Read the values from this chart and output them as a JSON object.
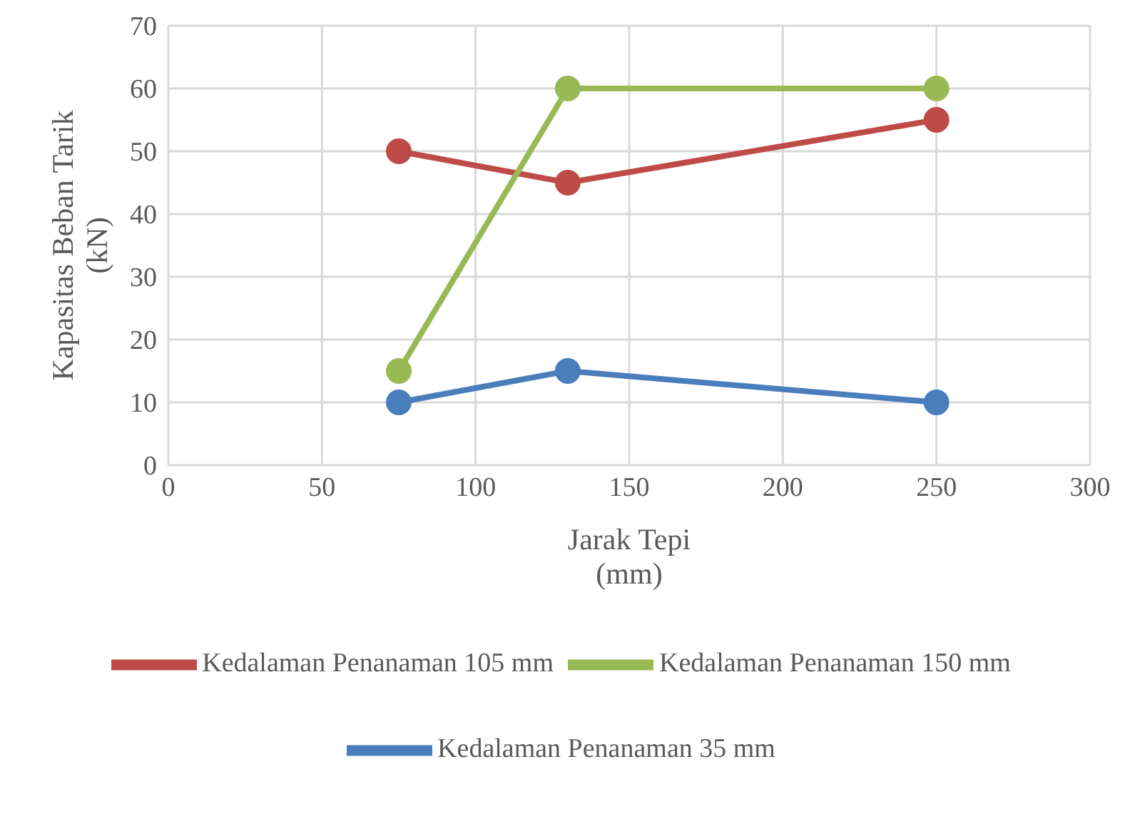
{
  "chart_data": {
    "type": "line",
    "xlabel": "Jarak Tepi\n(mm)",
    "ylabel": "Kapasitas Beban Tarik\n(kN)",
    "x": [
      75,
      130,
      250
    ],
    "series": [
      {
        "name": "Kedalaman Penanaman 35 mm",
        "color": "#4a7ebb",
        "values": [
          10,
          15,
          10
        ]
      },
      {
        "name": "Kedalaman Penanaman 105 mm",
        "color": "#be4b48",
        "values": [
          50,
          45,
          55
        ]
      },
      {
        "name": "Kedalaman Penanaman 150 mm",
        "color": "#98b954",
        "values": [
          15,
          60,
          60
        ]
      }
    ],
    "xlim": [
      0,
      300
    ],
    "xticks": [
      0,
      50,
      100,
      150,
      200,
      250,
      300
    ],
    "ylim": [
      0,
      70
    ],
    "yticks": [
      0,
      10,
      20,
      30,
      40,
      50,
      60,
      70
    ],
    "grid": true,
    "legend": "bottom",
    "marker": "circle",
    "line_style": "solid"
  }
}
